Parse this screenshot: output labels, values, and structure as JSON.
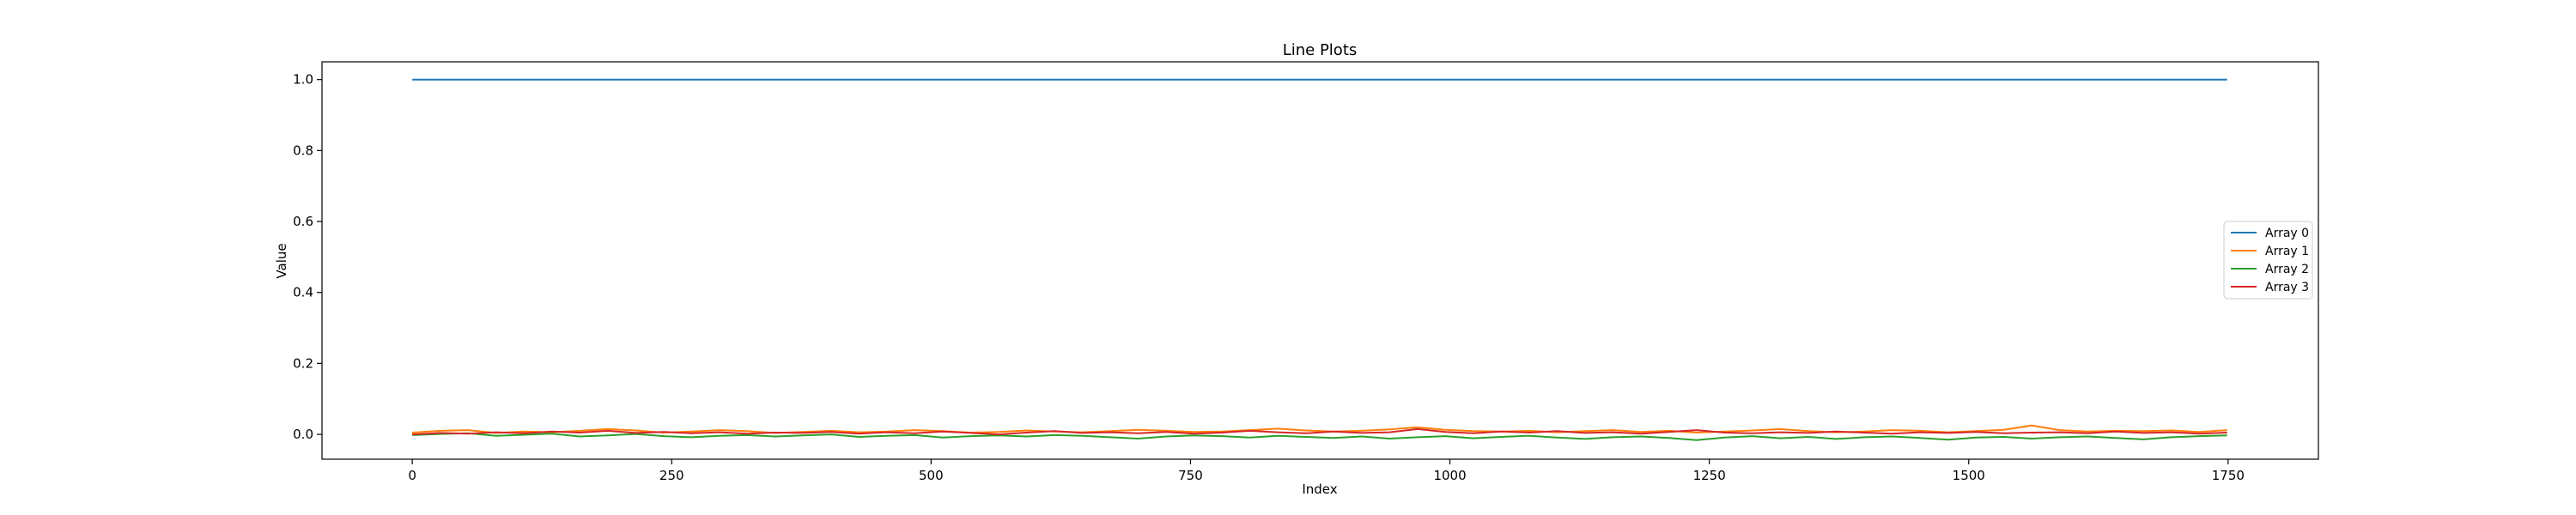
{
  "chart_data": {
    "type": "line",
    "title": "Line Plots",
    "xlabel": "Index",
    "ylabel": "Value",
    "xlim": [
      -87,
      1837
    ],
    "ylim": [
      -0.07,
      1.05
    ],
    "xticks": [
      0,
      250,
      500,
      750,
      1000,
      1250,
      1500,
      1750
    ],
    "yticks": [
      0.0,
      0.2,
      0.4,
      0.6,
      0.8,
      1.0
    ],
    "grid": false,
    "legend_position": "center-right",
    "x_range": [
      0,
      1749
    ],
    "series": [
      {
        "name": "Array 0",
        "color": "#1f77b4",
        "values": [
          1.0,
          1.0
        ]
      },
      {
        "name": "Array 1",
        "color": "#ff7f0e",
        "values": [
          0.005,
          0.01,
          0.012,
          0.004,
          0.008,
          0.006,
          0.01,
          0.015,
          0.011,
          0.005,
          0.008,
          0.012,
          0.009,
          0.004,
          0.007,
          0.01,
          0.006,
          0.008,
          0.012,
          0.009,
          0.005,
          0.007,
          0.011,
          0.008,
          0.006,
          0.009,
          0.013,
          0.01,
          0.007,
          0.008,
          0.012,
          0.016,
          0.011,
          0.008,
          0.01,
          0.014,
          0.02,
          0.013,
          0.009,
          0.008,
          0.01,
          0.006,
          0.009,
          0.012,
          0.007,
          0.01,
          0.005,
          0.008,
          0.011,
          0.015,
          0.009,
          0.006,
          0.008,
          0.012,
          0.01,
          0.006,
          0.009,
          0.013,
          0.025,
          0.012,
          0.008,
          0.01,
          0.009,
          0.011,
          0.007,
          0.012
        ]
      },
      {
        "name": "Array 2",
        "color": "#2ca02c",
        "values": [
          -0.002,
          0.001,
          0.003,
          -0.004,
          -0.001,
          0.002,
          -0.006,
          -0.003,
          0.001,
          -0.005,
          -0.008,
          -0.004,
          -0.002,
          -0.006,
          -0.003,
          0.0,
          -0.007,
          -0.004,
          -0.002,
          -0.009,
          -0.005,
          -0.003,
          -0.006,
          -0.002,
          -0.004,
          -0.008,
          -0.012,
          -0.006,
          -0.003,
          -0.005,
          -0.009,
          -0.004,
          -0.007,
          -0.01,
          -0.006,
          -0.012,
          -0.008,
          -0.005,
          -0.011,
          -0.007,
          -0.004,
          -0.009,
          -0.013,
          -0.008,
          -0.006,
          -0.01,
          -0.016,
          -0.009,
          -0.005,
          -0.011,
          -0.007,
          -0.013,
          -0.008,
          -0.006,
          -0.01,
          -0.015,
          -0.009,
          -0.007,
          -0.012,
          -0.008,
          -0.006,
          -0.01,
          -0.014,
          -0.008,
          -0.005,
          -0.003
        ]
      },
      {
        "name": "Array 3",
        "color": "#d62728",
        "values": [
          0.0,
          0.004,
          0.002,
          0.006,
          0.003,
          0.008,
          0.005,
          0.01,
          0.004,
          0.007,
          0.003,
          0.006,
          0.002,
          0.005,
          0.004,
          0.007,
          0.002,
          0.006,
          0.003,
          0.008,
          0.004,
          0.0,
          0.005,
          0.009,
          0.004,
          0.006,
          0.003,
          0.007,
          0.002,
          0.005,
          0.01,
          0.006,
          0.003,
          0.008,
          0.004,
          0.006,
          0.015,
          0.007,
          0.003,
          0.008,
          0.005,
          0.009,
          0.004,
          0.006,
          0.002,
          0.007,
          0.012,
          0.005,
          0.003,
          0.006,
          0.004,
          0.008,
          0.005,
          0.002,
          0.006,
          0.004,
          0.007,
          0.003,
          0.005,
          0.006,
          0.003,
          0.008,
          0.004,
          0.006,
          0.002,
          0.005
        ]
      }
    ]
  }
}
